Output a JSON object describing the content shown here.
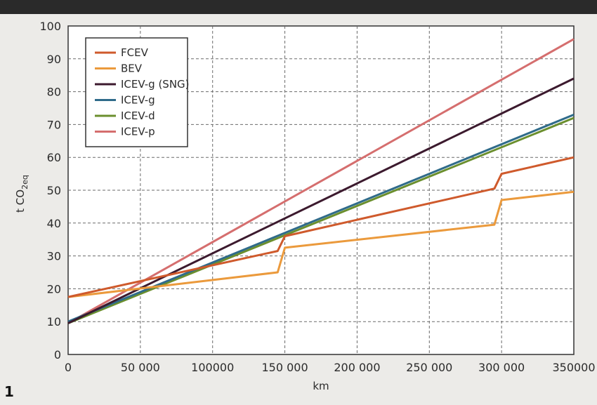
{
  "figure_number": "1",
  "chart_data": {
    "type": "line",
    "title": "",
    "xlabel": "km",
    "ylabel_main": "t CO",
    "ylabel_sub": "2eq",
    "xlim": [
      0,
      350000
    ],
    "ylim": [
      0,
      100
    ],
    "x_ticks": [
      0,
      50000,
      100000,
      150000,
      200000,
      250000,
      300000,
      350000
    ],
    "x_tick_labels": [
      "0",
      "50 000",
      "100000",
      "150 000",
      "200 000",
      "250 000",
      "300 000",
      "350000"
    ],
    "y_ticks": [
      0,
      10,
      20,
      30,
      40,
      50,
      60,
      70,
      80,
      90,
      100
    ],
    "y_tick_labels": [
      "0",
      "10",
      "20",
      "30",
      "40",
      "50",
      "60",
      "70",
      "80",
      "90",
      "100"
    ],
    "grid": true,
    "legend_position": "top-left",
    "series": [
      {
        "name": "FCEV",
        "color": "#cf5a2c",
        "points": [
          [
            0,
            17.5
          ],
          [
            145000,
            31.5
          ],
          [
            150000,
            36
          ],
          [
            295000,
            50.5
          ],
          [
            300000,
            55
          ],
          [
            350000,
            60
          ]
        ]
      },
      {
        "name": "BEV",
        "color": "#eb9a3c",
        "points": [
          [
            0,
            17.5
          ],
          [
            145000,
            25
          ],
          [
            150000,
            32.5
          ],
          [
            295000,
            39.5
          ],
          [
            300000,
            47
          ],
          [
            350000,
            49.5
          ]
        ]
      },
      {
        "name": "ICEV-g (SNG)",
        "color": "#3c1a2e",
        "points": [
          [
            0,
            9.5
          ],
          [
            350000,
            84
          ]
        ]
      },
      {
        "name": "ICEV-g",
        "color": "#2f6b8a",
        "points": [
          [
            0,
            10
          ],
          [
            350000,
            73
          ]
        ]
      },
      {
        "name": "ICEV-d",
        "color": "#6b8f2e",
        "points": [
          [
            0,
            9.5
          ],
          [
            350000,
            72
          ]
        ]
      },
      {
        "name": "ICEV-p",
        "color": "#d56e6e",
        "points": [
          [
            0,
            9.5
          ],
          [
            350000,
            96
          ]
        ]
      }
    ]
  }
}
